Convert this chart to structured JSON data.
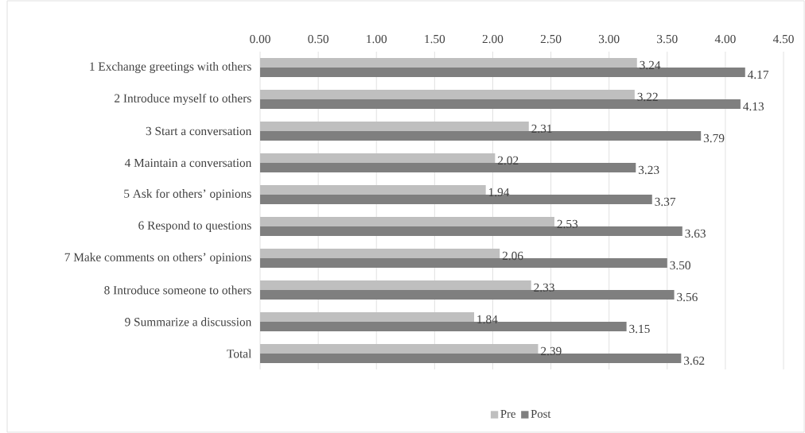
{
  "chart_data": {
    "type": "bar",
    "orientation": "horizontal",
    "categories": [
      "1 Exchange greetings with others",
      "2 Introduce myself to others",
      "3 Start a conversation",
      "4 Maintain a conversation",
      "5 Ask for others’ opinions",
      "6 Respond to questions",
      "7 Make comments on others’ opinions",
      "8 Introduce someone to others",
      "9 Summarize a discussion",
      "Total"
    ],
    "series": [
      {
        "name": "Pre",
        "color": "#bfbfbf",
        "values": [
          3.24,
          3.22,
          2.31,
          2.02,
          1.94,
          2.53,
          2.06,
          2.33,
          1.84,
          2.39
        ],
        "value_labels": [
          "3.24",
          "3.22",
          "2.31",
          "2.02",
          "1.94",
          "2.53",
          "2.06",
          "2.33",
          "1.84",
          "2.39"
        ]
      },
      {
        "name": "Post",
        "color": "#7f7f7f",
        "values": [
          4.17,
          4.13,
          3.79,
          3.23,
          3.37,
          3.63,
          3.5,
          3.56,
          3.15,
          3.62
        ],
        "value_labels": [
          "4.17",
          "4.13",
          "3.79",
          "3.23",
          "3.37",
          "3.63",
          "3.50",
          "3.56",
          "3.15",
          "3.62"
        ]
      }
    ],
    "xlim": [
      0,
      4.5
    ],
    "xticks": [
      {
        "value": 0,
        "label": "0.00"
      },
      {
        "value": 0.5,
        "label": "0.50"
      },
      {
        "value": 1,
        "label": "1.00"
      },
      {
        "value": 1.5,
        "label": "1.50"
      },
      {
        "value": 2,
        "label": "2.00"
      },
      {
        "value": 2.5,
        "label": "2.50"
      },
      {
        "value": 3,
        "label": "3.00"
      },
      {
        "value": 3.5,
        "label": "3.50"
      },
      {
        "value": 4,
        "label": "4.00"
      },
      {
        "value": 4.5,
        "label": "4.50"
      }
    ],
    "grid": "x",
    "legend": "bottom"
  }
}
